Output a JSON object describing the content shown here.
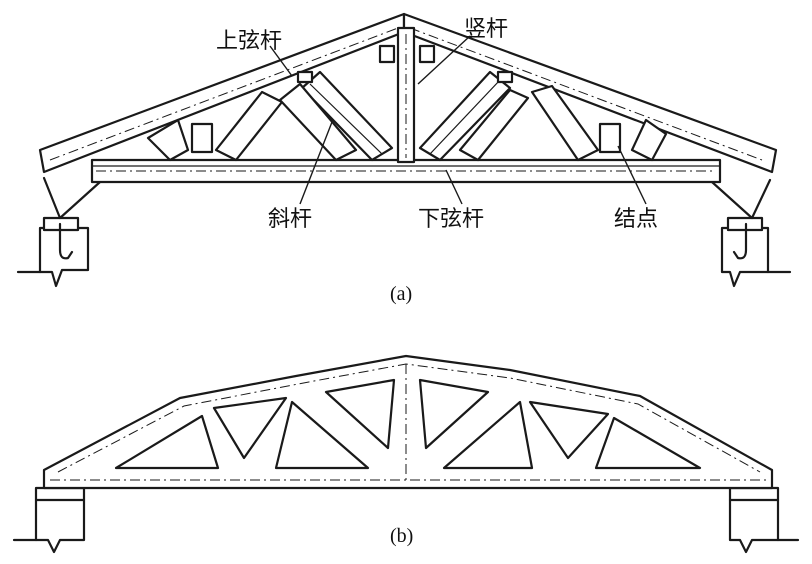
{
  "figure_a": {
    "caption": "(a)",
    "labels": {
      "top_chord": "上弦杆",
      "vertical_member": "竖杆",
      "diagonal_member": "斜杆",
      "bottom_chord": "下弦杆",
      "joint": "结点"
    }
  },
  "figure_b": {
    "caption": "(b)"
  }
}
